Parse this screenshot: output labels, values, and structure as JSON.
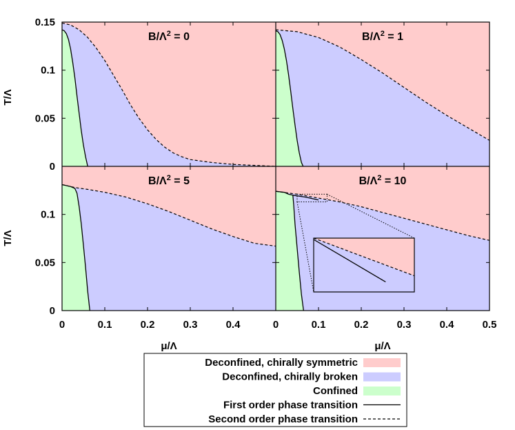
{
  "chart_data": {
    "type": "area",
    "layout": "2x2 panels sharing axes",
    "xlabel": "μ/Λ",
    "ylabel": "T/Λ",
    "xlim": [
      0,
      0.5
    ],
    "ylim": [
      0,
      0.15
    ],
    "x_ticks": [
      "0",
      "0.1",
      "0.2",
      "0.3",
      "0.4",
      "0.5"
    ],
    "y_ticks": [
      "0",
      "0.05",
      "0.1",
      "0.15"
    ],
    "colors": {
      "symmetric": "#ffcccc",
      "broken": "#ccccff",
      "confined": "#ccffcc"
    },
    "panels": [
      {
        "id": "b0",
        "title_base": "B/Λ",
        "title_exp": "2",
        "title_value": " = 0",
        "first_order": [
          [
            0.0,
            0.142
          ],
          [
            0.005,
            0.141
          ],
          [
            0.01,
            0.138
          ],
          [
            0.015,
            0.132
          ],
          [
            0.02,
            0.122
          ],
          [
            0.025,
            0.108
          ],
          [
            0.03,
            0.092
          ],
          [
            0.035,
            0.073
          ],
          [
            0.04,
            0.055
          ],
          [
            0.045,
            0.037
          ],
          [
            0.05,
            0.022
          ],
          [
            0.055,
            0.01
          ],
          [
            0.06,
            0.0
          ]
        ],
        "second_order": [
          [
            0.0,
            0.149
          ],
          [
            0.02,
            0.147
          ],
          [
            0.04,
            0.142
          ],
          [
            0.06,
            0.134
          ],
          [
            0.08,
            0.123
          ],
          [
            0.1,
            0.11
          ],
          [
            0.12,
            0.095
          ],
          [
            0.14,
            0.08
          ],
          [
            0.16,
            0.064
          ],
          [
            0.18,
            0.05
          ],
          [
            0.2,
            0.038
          ],
          [
            0.22,
            0.028
          ],
          [
            0.24,
            0.02
          ],
          [
            0.26,
            0.014
          ],
          [
            0.28,
            0.01
          ],
          [
            0.3,
            0.007
          ],
          [
            0.35,
            0.004
          ],
          [
            0.4,
            0.002
          ],
          [
            0.45,
            0.001
          ],
          [
            0.5,
            0.0
          ]
        ]
      },
      {
        "id": "b1",
        "title_base": "B/Λ",
        "title_exp": "2",
        "title_value": " = 1",
        "first_order": [
          [
            0.0,
            0.141
          ],
          [
            0.005,
            0.14
          ],
          [
            0.01,
            0.137
          ],
          [
            0.015,
            0.131
          ],
          [
            0.02,
            0.122
          ],
          [
            0.025,
            0.11
          ],
          [
            0.03,
            0.095
          ],
          [
            0.035,
            0.078
          ],
          [
            0.04,
            0.06
          ],
          [
            0.045,
            0.043
          ],
          [
            0.05,
            0.027
          ],
          [
            0.055,
            0.014
          ],
          [
            0.06,
            0.004
          ],
          [
            0.064,
            0.0
          ]
        ],
        "second_order": [
          [
            0.0,
            0.142
          ],
          [
            0.05,
            0.14
          ],
          [
            0.1,
            0.134
          ],
          [
            0.15,
            0.124
          ],
          [
            0.2,
            0.111
          ],
          [
            0.25,
            0.097
          ],
          [
            0.3,
            0.082
          ],
          [
            0.35,
            0.067
          ],
          [
            0.4,
            0.053
          ],
          [
            0.45,
            0.04
          ],
          [
            0.5,
            0.027
          ]
        ]
      },
      {
        "id": "b5",
        "title_base": "B/Λ",
        "title_exp": "2",
        "title_value": " = 5",
        "first_order": [
          [
            0.0,
            0.131
          ],
          [
            0.01,
            0.13
          ],
          [
            0.02,
            0.129
          ],
          [
            0.03,
            0.127
          ],
          [
            0.035,
            0.122
          ],
          [
            0.04,
            0.108
          ],
          [
            0.045,
            0.09
          ],
          [
            0.05,
            0.068
          ],
          [
            0.055,
            0.045
          ],
          [
            0.06,
            0.02
          ],
          [
            0.065,
            0.0
          ]
        ],
        "second_order": [
          [
            0.0,
            0.131
          ],
          [
            0.03,
            0.128
          ],
          [
            0.06,
            0.126
          ],
          [
            0.1,
            0.123
          ],
          [
            0.15,
            0.118
          ],
          [
            0.2,
            0.111
          ],
          [
            0.25,
            0.103
          ],
          [
            0.3,
            0.094
          ],
          [
            0.35,
            0.085
          ],
          [
            0.4,
            0.077
          ],
          [
            0.45,
            0.07
          ],
          [
            0.5,
            0.067
          ]
        ]
      },
      {
        "id": "b10",
        "title_base": "B/Λ",
        "title_exp": "2",
        "title_value": " = 10",
        "first_order": [
          [
            0.0,
            0.124
          ],
          [
            0.02,
            0.123
          ],
          [
            0.03,
            0.121
          ],
          [
            0.04,
            0.12
          ],
          [
            0.042,
            0.11
          ],
          [
            0.045,
            0.09
          ],
          [
            0.05,
            0.065
          ],
          [
            0.055,
            0.04
          ],
          [
            0.06,
            0.017
          ],
          [
            0.065,
            0.0
          ]
        ],
        "first_order_tail": [
          [
            0.04,
            0.12
          ],
          [
            0.07,
            0.118
          ],
          [
            0.1,
            0.115
          ]
        ],
        "second_order": [
          [
            0.0,
            0.124
          ],
          [
            0.05,
            0.121
          ],
          [
            0.1,
            0.117
          ],
          [
            0.15,
            0.113
          ],
          [
            0.2,
            0.108
          ],
          [
            0.25,
            0.102
          ],
          [
            0.3,
            0.096
          ],
          [
            0.35,
            0.09
          ],
          [
            0.4,
            0.084
          ],
          [
            0.45,
            0.078
          ],
          [
            0.5,
            0.073
          ]
        ],
        "inset_zoom": {
          "x": [
            0.05,
            0.12
          ],
          "y": [
            0.113,
            0.121
          ]
        }
      }
    ],
    "legend": [
      {
        "label": "Deconfined, chirally symmetric",
        "kind": "fill",
        "color": "#ffcccc"
      },
      {
        "label": "Deconfined, chirally broken",
        "kind": "fill",
        "color": "#ccccff"
      },
      {
        "label": "Confined",
        "kind": "fill",
        "color": "#ccffcc"
      },
      {
        "label": "First order phase transition",
        "kind": "solid"
      },
      {
        "label": "Second order phase transition",
        "kind": "dashed"
      }
    ]
  }
}
